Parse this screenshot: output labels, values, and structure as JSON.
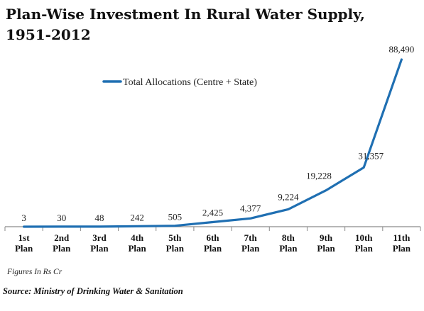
{
  "title": "Plan-Wise Investment In Rural Water Supply, 1951-2012",
  "note": "Figures In Rs Cr",
  "source": "Source: Ministry of Drinking Water & Sanitation",
  "colors": {
    "series": "#1f6fb2",
    "axis": "#8a8a8a"
  },
  "chart_data": {
    "type": "line",
    "categories": [
      [
        "1st",
        "Plan"
      ],
      [
        "2nd",
        "Plan"
      ],
      [
        "3rd",
        "Plan"
      ],
      [
        "4th",
        "Plan"
      ],
      [
        "5th",
        "Plan"
      ],
      [
        "6th",
        "Plan"
      ],
      [
        "7th",
        "Plan"
      ],
      [
        "8th",
        "Plan"
      ],
      [
        "9th",
        "Plan"
      ],
      [
        "10th",
        "Plan"
      ],
      [
        "11th",
        "Plan"
      ]
    ],
    "series": [
      {
        "name": "Total Allocations (Centre + State)",
        "values": [
          3,
          30,
          48,
          242,
          505,
          2425,
          4377,
          9224,
          19228,
          31357,
          88490
        ],
        "labels": [
          "3",
          "30",
          "48",
          "242",
          "505",
          "2,425",
          "4,377",
          "9,224",
          "19,228",
          "31,357",
          "88,490"
        ]
      }
    ],
    "legend": "top-left",
    "grid": false,
    "ylim": [
      0,
      90000
    ]
  }
}
